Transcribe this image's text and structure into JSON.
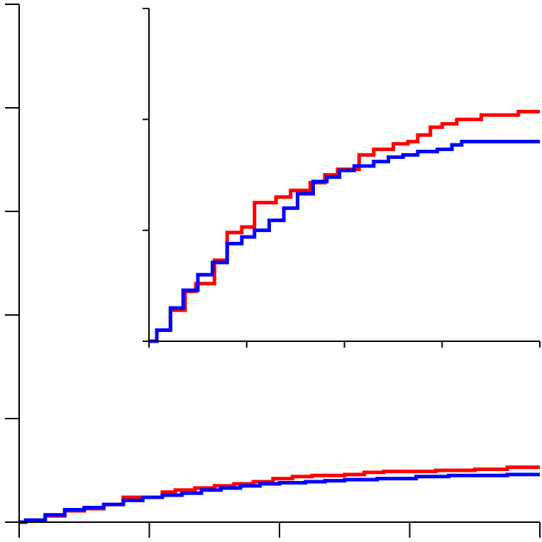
{
  "chart_data": [
    {
      "type": "line",
      "step": true,
      "xlim": [
        0,
        4
      ],
      "ylim": [
        0,
        5
      ],
      "x_ticks": [
        0,
        1,
        2,
        3,
        4
      ],
      "y_ticks": [
        0,
        1,
        2,
        3,
        4,
        5
      ],
      "grid": false,
      "series": [
        {
          "color": "#ff0000",
          "points": [
            [
              0,
              0
            ],
            [
              0.05,
              0.01
            ],
            [
              0.2,
              0.06
            ],
            [
              0.35,
              0.11
            ],
            [
              0.5,
              0.13
            ],
            [
              0.65,
              0.17
            ],
            [
              0.8,
              0.24
            ],
            [
              1.1,
              0.29
            ],
            [
              1.2,
              0.31
            ],
            [
              1.35,
              0.33
            ],
            [
              1.5,
              0.35
            ],
            [
              1.65,
              0.37
            ],
            [
              1.8,
              0.39
            ],
            [
              1.95,
              0.42
            ],
            [
              2.1,
              0.44
            ],
            [
              2.25,
              0.45
            ],
            [
              2.5,
              0.46
            ],
            [
              2.65,
              0.48
            ],
            [
              2.8,
              0.49
            ],
            [
              3.0,
              0.49
            ],
            [
              3.2,
              0.5
            ],
            [
              3.5,
              0.51
            ],
            [
              3.75,
              0.53
            ],
            [
              4.0,
              0.53
            ]
          ]
        },
        {
          "color": "#0000ff",
          "points": [
            [
              0,
              0
            ],
            [
              0.05,
              0.02
            ],
            [
              0.2,
              0.07
            ],
            [
              0.35,
              0.12
            ],
            [
              0.5,
              0.14
            ],
            [
              0.65,
              0.17
            ],
            [
              0.8,
              0.21
            ],
            [
              0.95,
              0.24
            ],
            [
              1.1,
              0.26
            ],
            [
              1.25,
              0.28
            ],
            [
              1.4,
              0.31
            ],
            [
              1.55,
              0.33
            ],
            [
              1.7,
              0.35
            ],
            [
              1.85,
              0.37
            ],
            [
              2.0,
              0.38
            ],
            [
              2.2,
              0.39
            ],
            [
              2.35,
              0.4
            ],
            [
              2.5,
              0.41
            ],
            [
              2.75,
              0.42
            ],
            [
              3.05,
              0.44
            ],
            [
              3.3,
              0.45
            ],
            [
              3.55,
              0.45
            ],
            [
              3.75,
              0.46
            ],
            [
              4.0,
              0.46
            ]
          ]
        }
      ]
    },
    {
      "type": "line",
      "step": true,
      "xlim": [
        0,
        4
      ],
      "ylim": [
        0,
        3
      ],
      "x_ticks": [
        0,
        1,
        2,
        3,
        4
      ],
      "y_ticks": [
        0,
        1,
        2,
        3
      ],
      "grid": false,
      "series": [
        {
          "color": "#ff0000",
          "points": [
            [
              0,
              0
            ],
            [
              0.08,
              0.1
            ],
            [
              0.22,
              0.28
            ],
            [
              0.37,
              0.45
            ],
            [
              0.48,
              0.52
            ],
            [
              0.67,
              0.73
            ],
            [
              0.8,
              0.98
            ],
            [
              0.95,
              1.03
            ],
            [
              1.08,
              1.25
            ],
            [
              1.3,
              1.3
            ],
            [
              1.45,
              1.36
            ],
            [
              1.65,
              1.43
            ],
            [
              1.8,
              1.5
            ],
            [
              1.93,
              1.55
            ],
            [
              2.15,
              1.68
            ],
            [
              2.3,
              1.73
            ],
            [
              2.5,
              1.78
            ],
            [
              2.65,
              1.8
            ],
            [
              2.75,
              1.86
            ],
            [
              2.88,
              1.93
            ],
            [
              3.0,
              1.96
            ],
            [
              3.15,
              2.0
            ],
            [
              3.4,
              2.04
            ],
            [
              3.78,
              2.07
            ],
            [
              4.0,
              2.07
            ]
          ]
        },
        {
          "color": "#0000ff",
          "points": [
            [
              0,
              0
            ],
            [
              0.08,
              0.1
            ],
            [
              0.22,
              0.3
            ],
            [
              0.35,
              0.46
            ],
            [
              0.5,
              0.6
            ],
            [
              0.65,
              0.71
            ],
            [
              0.8,
              0.88
            ],
            [
              0.95,
              0.94
            ],
            [
              1.08,
              1.0
            ],
            [
              1.23,
              1.09
            ],
            [
              1.38,
              1.2
            ],
            [
              1.52,
              1.33
            ],
            [
              1.68,
              1.44
            ],
            [
              1.82,
              1.48
            ],
            [
              1.95,
              1.54
            ],
            [
              2.1,
              1.58
            ],
            [
              2.3,
              1.62
            ],
            [
              2.45,
              1.66
            ],
            [
              2.6,
              1.68
            ],
            [
              2.75,
              1.71
            ],
            [
              2.95,
              1.73
            ],
            [
              3.1,
              1.77
            ],
            [
              3.2,
              1.8
            ],
            [
              3.35,
              1.8
            ],
            [
              4.0,
              1.8
            ]
          ]
        }
      ]
    }
  ]
}
